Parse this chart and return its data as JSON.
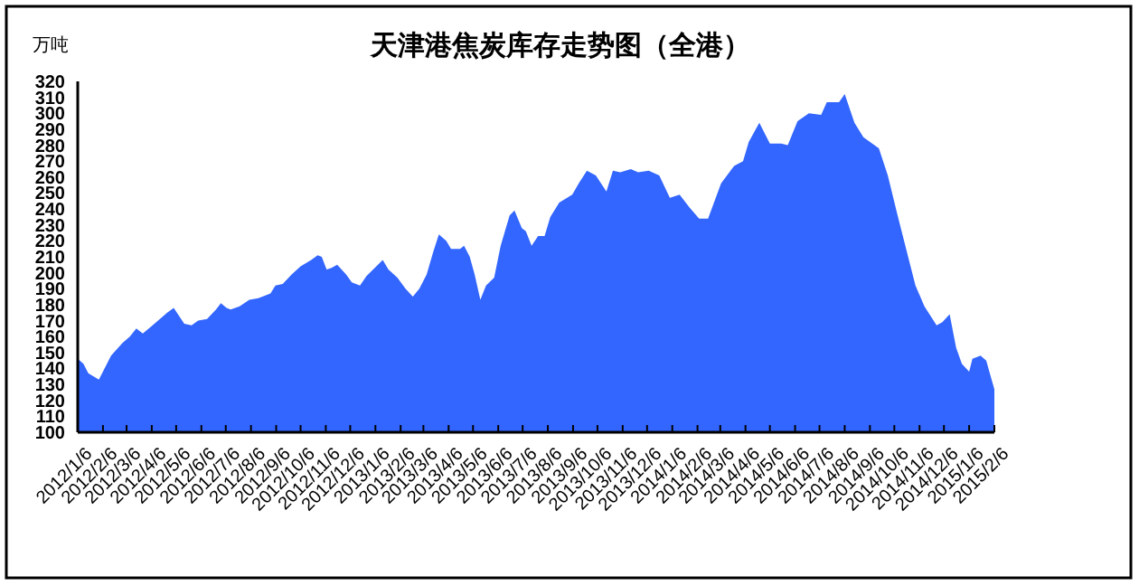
{
  "chart_data": {
    "type": "area",
    "title": "天津港焦炭库存走势图（全港）",
    "ylabel": "万吨",
    "color": "#3366ff",
    "x": [
      "2012-01-06",
      "2012-01-13",
      "2012-01-19",
      "2012-02-01",
      "2012-02-16",
      "2012-03-01",
      "2012-03-10",
      "2012-03-18",
      "2012-03-26",
      "2012-04-07",
      "2012-04-25",
      "2012-05-03",
      "2012-05-16",
      "2012-05-25",
      "2012-06-02",
      "2012-06-13",
      "2012-06-24",
      "2012-06-30",
      "2012-07-07",
      "2012-07-12",
      "2012-07-23",
      "2012-08-04",
      "2012-08-15",
      "2012-08-30",
      "2012-09-05",
      "2012-09-14",
      "2012-09-25",
      "2012-10-06",
      "2012-10-19",
      "2012-10-27",
      "2012-11-01",
      "2012-11-07",
      "2012-11-13",
      "2012-11-20",
      "2012-12-01",
      "2012-12-08",
      "2012-12-18",
      "2012-12-26",
      "2013-01-15",
      "2013-01-22",
      "2013-02-02",
      "2013-02-12",
      "2013-02-21",
      "2013-03-01",
      "2013-03-10",
      "2013-03-18",
      "2013-03-25",
      "2013-04-03",
      "2013-04-09",
      "2013-04-20",
      "2013-04-25",
      "2013-05-02",
      "2013-05-08",
      "2013-05-15",
      "2013-05-22",
      "2013-06-01",
      "2013-06-09",
      "2013-06-20",
      "2013-06-26",
      "2013-07-05",
      "2013-07-10",
      "2013-07-17",
      "2013-07-25",
      "2013-08-02",
      "2013-08-09",
      "2013-08-20",
      "2013-09-05",
      "2013-09-13",
      "2013-09-23",
      "2013-10-04",
      "2013-10-17",
      "2013-10-25",
      "2013-11-03",
      "2013-11-16",
      "2013-11-25",
      "2013-12-08",
      "2013-12-21",
      "2014-01-03",
      "2014-01-15",
      "2014-01-27",
      "2014-02-08",
      "2014-02-19",
      "2014-03-07",
      "2014-03-23",
      "2014-04-03",
      "2014-04-10",
      "2014-04-23",
      "2014-05-06",
      "2014-05-20",
      "2014-05-28",
      "2014-06-09",
      "2014-06-23",
      "2014-07-08",
      "2014-07-15",
      "2014-07-30",
      "2014-08-06",
      "2014-08-18",
      "2014-08-29",
      "2014-09-17",
      "2014-09-28",
      "2014-10-09",
      "2014-10-20",
      "2014-11-01",
      "2014-11-12",
      "2014-11-27",
      "2014-12-04",
      "2014-12-13",
      "2014-12-21",
      "2014-12-28",
      "2015-01-06",
      "2015-01-10",
      "2015-01-20",
      "2015-01-27",
      "2015-02-06"
    ],
    "values": [
      146,
      143,
      137,
      133,
      148,
      156,
      160,
      165,
      162,
      167,
      175,
      178,
      168,
      167,
      170,
      171,
      177,
      181,
      178,
      177,
      179,
      183,
      184,
      187,
      192,
      193,
      199,
      204,
      208,
      211,
      210,
      202,
      203,
      205,
      199,
      194,
      192,
      198,
      208,
      202,
      197,
      190,
      185,
      190,
      199,
      213,
      224,
      220,
      215,
      215,
      217,
      210,
      199,
      183,
      192,
      197,
      217,
      236,
      239,
      228,
      226,
      217,
      223,
      223,
      235,
      244,
      249,
      256,
      264,
      261,
      251,
      264,
      263,
      265,
      263,
      264,
      261,
      247,
      249,
      241,
      234,
      234,
      256,
      267,
      270,
      282,
      294,
      281,
      281,
      280,
      295,
      300,
      299,
      307,
      307,
      312,
      294,
      285,
      278,
      261,
      238,
      216,
      192,
      179,
      167,
      169,
      174,
      153,
      143,
      138,
      146,
      148,
      145,
      127
    ],
    "ylim": [
      100,
      320
    ],
    "yticks": [
      100,
      110,
      120,
      130,
      140,
      150,
      160,
      170,
      180,
      190,
      200,
      210,
      220,
      230,
      240,
      250,
      260,
      270,
      280,
      290,
      300,
      310,
      320
    ],
    "xlim": [
      "2012-01-06",
      "2015-02-06"
    ],
    "xticks": [
      {
        "value": "2012-01-06",
        "label": "2012/1/6"
      },
      {
        "value": "2012-02-06",
        "label": "2012/2/6"
      },
      {
        "value": "2012-03-06",
        "label": "2012/3/6"
      },
      {
        "value": "2012-04-06",
        "label": "2012/4/6"
      },
      {
        "value": "2012-05-06",
        "label": "2012/5/6"
      },
      {
        "value": "2012-06-06",
        "label": "2012/6/6"
      },
      {
        "value": "2012-07-06",
        "label": "2012/7/6"
      },
      {
        "value": "2012-08-06",
        "label": "2012/8/6"
      },
      {
        "value": "2012-09-06",
        "label": "2012/9/6"
      },
      {
        "value": "2012-10-06",
        "label": "2012/10/6"
      },
      {
        "value": "2012-11-06",
        "label": "2012/11/6"
      },
      {
        "value": "2012-12-06",
        "label": "2012/12/6"
      },
      {
        "value": "2013-01-06",
        "label": "2013/1/6"
      },
      {
        "value": "2013-02-06",
        "label": "2013/2/6"
      },
      {
        "value": "2013-03-06",
        "label": "2013/3/6"
      },
      {
        "value": "2013-04-06",
        "label": "2013/4/6"
      },
      {
        "value": "2013-05-06",
        "label": "2013/5/6"
      },
      {
        "value": "2013-06-06",
        "label": "2013/6/6"
      },
      {
        "value": "2013-07-06",
        "label": "2013/7/6"
      },
      {
        "value": "2013-08-06",
        "label": "2013/8/6"
      },
      {
        "value": "2013-09-06",
        "label": "2013/9/6"
      },
      {
        "value": "2013-10-06",
        "label": "2013/10/6"
      },
      {
        "value": "2013-11-06",
        "label": "2013/11/6"
      },
      {
        "value": "2013-12-06",
        "label": "2013/12/6"
      },
      {
        "value": "2014-01-06",
        "label": "2014/1/6"
      },
      {
        "value": "2014-02-06",
        "label": "2014/2/6"
      },
      {
        "value": "2014-03-06",
        "label": "2014/3/6"
      },
      {
        "value": "2014-04-06",
        "label": "2014/4/6"
      },
      {
        "value": "2014-05-06",
        "label": "2014/5/6"
      },
      {
        "value": "2014-06-06",
        "label": "2014/6/6"
      },
      {
        "value": "2014-07-06",
        "label": "2014/7/6"
      },
      {
        "value": "2014-08-06",
        "label": "2014/8/6"
      },
      {
        "value": "2014-09-06",
        "label": "2014/9/6"
      },
      {
        "value": "2014-10-06",
        "label": "2014/10/6"
      },
      {
        "value": "2014-11-06",
        "label": "2014/11/6"
      },
      {
        "value": "2014-12-06",
        "label": "2014/12/6"
      },
      {
        "value": "2015-01-06",
        "label": "2015/1/6"
      },
      {
        "value": "2015-02-06",
        "label": "2015/2/6"
      }
    ]
  }
}
